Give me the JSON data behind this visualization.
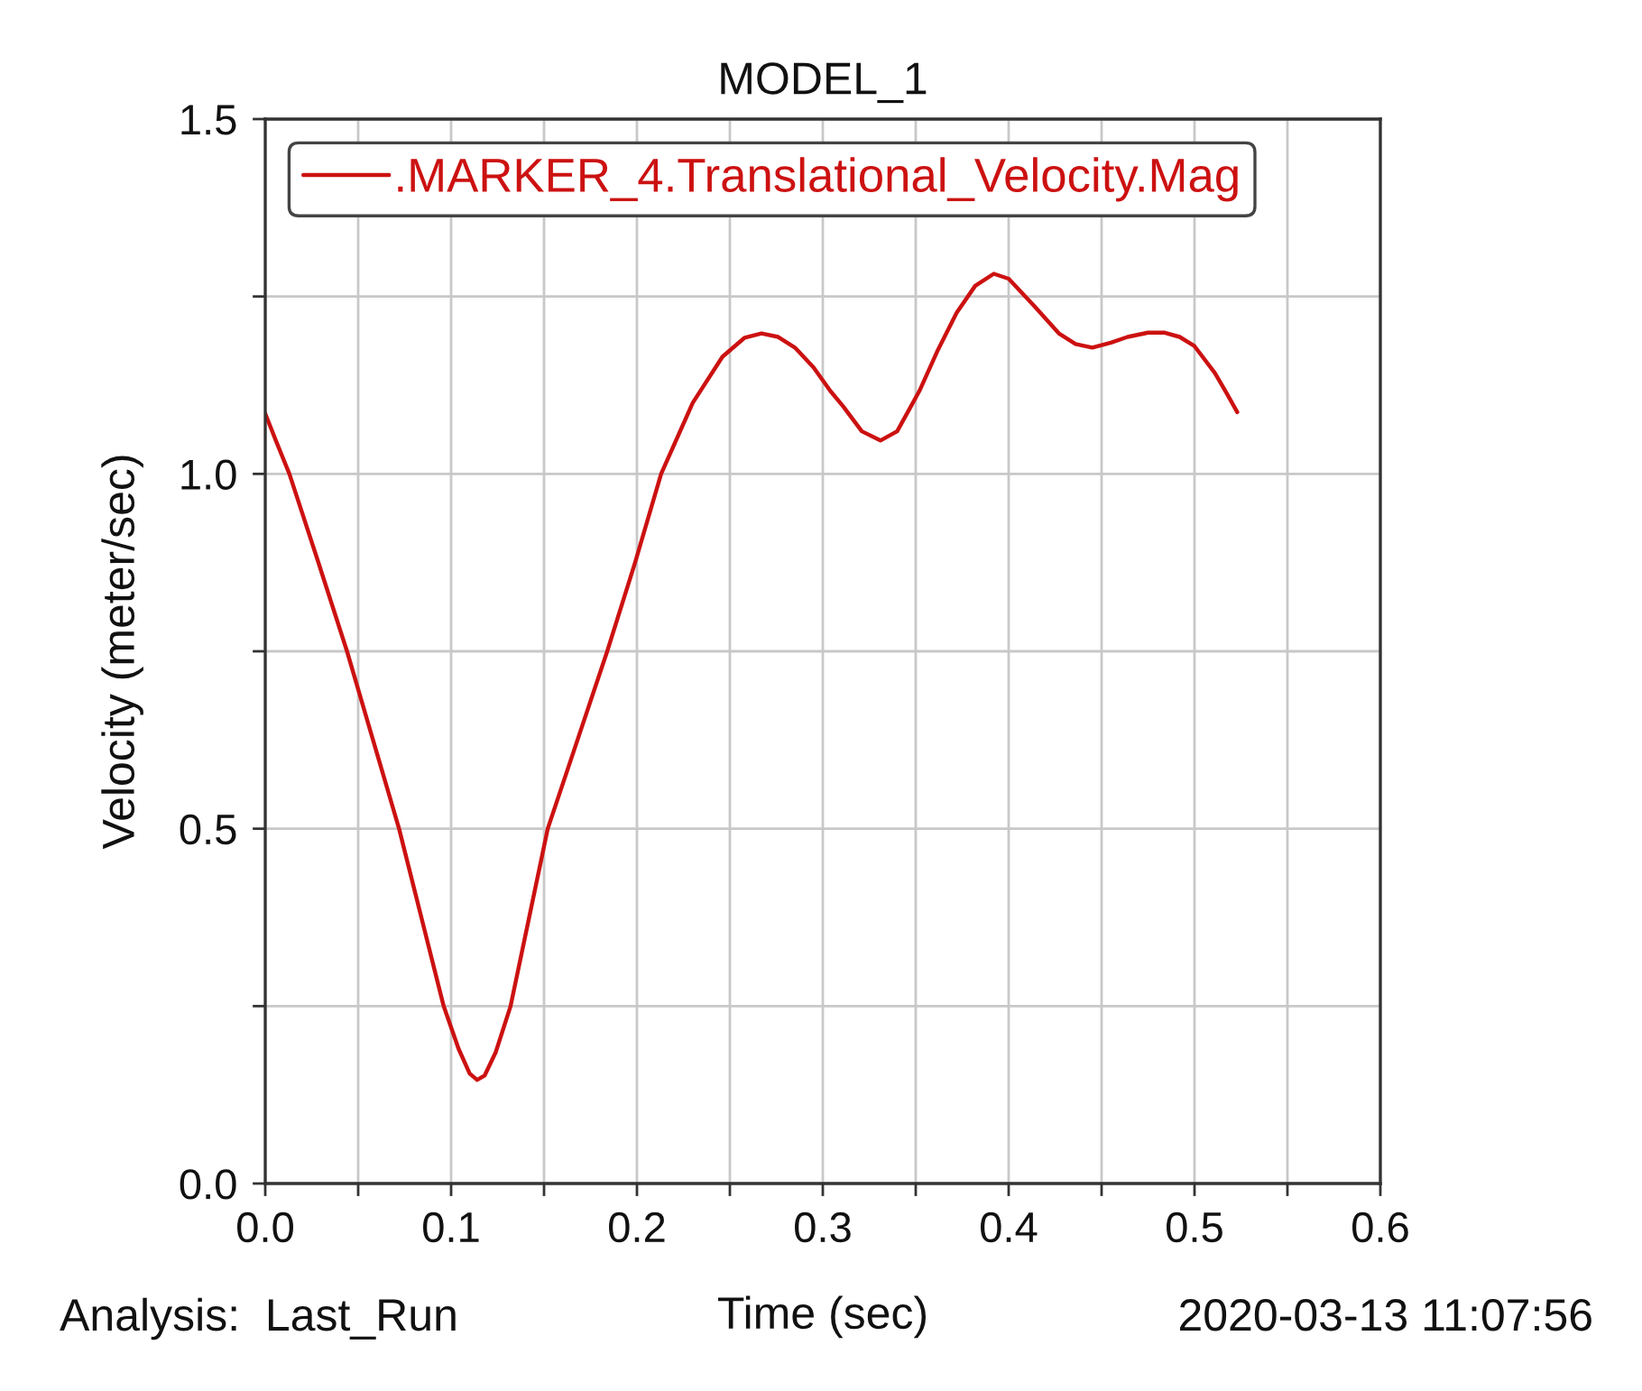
{
  "chart_data": {
    "type": "line",
    "title": "MODEL_1",
    "xlabel": "Time (sec)",
    "ylabel": "Velocity (meter/sec)",
    "annotations": [
      "Analysis:  Last_Run",
      "2020-03-13 11:07:56"
    ],
    "series": [
      {
        "name": ".MARKER_4.Translational_Velocity.Mag",
        "color": "#cc1111",
        "x": [
          0,
          0.006,
          0.013,
          0.028,
          0.044,
          0.058,
          0.072,
          0.084,
          0.096,
          0.104,
          0.11,
          0.114,
          0.118,
          0.124,
          0.132,
          0.142,
          0.152,
          0.168,
          0.184,
          0.199,
          0.213,
          0.23,
          0.246,
          0.258,
          0.267,
          0.276,
          0.285,
          0.295,
          0.304,
          0.311,
          0.321,
          0.331,
          0.34,
          0.352,
          0.362,
          0.372,
          0.382,
          0.392,
          0.4,
          0.414,
          0.427,
          0.436,
          0.445,
          0.455,
          0.464,
          0.475,
          0.484,
          0.492,
          0.5,
          0.511,
          0.517,
          0.523
        ],
        "values": [
          1.085,
          1.045,
          1.0,
          0.88,
          0.75,
          0.625,
          0.5,
          0.375,
          0.25,
          0.19,
          0.155,
          0.146,
          0.152,
          0.185,
          0.25,
          0.375,
          0.5,
          0.625,
          0.75,
          0.875,
          1.0,
          1.1,
          1.165,
          1.192,
          1.198,
          1.193,
          1.178,
          1.15,
          1.117,
          1.095,
          1.06,
          1.047,
          1.06,
          1.117,
          1.175,
          1.227,
          1.265,
          1.282,
          1.275,
          1.236,
          1.198,
          1.183,
          1.178,
          1.185,
          1.193,
          1.199,
          1.199,
          1.193,
          1.18,
          1.142,
          1.115,
          1.087
        ]
      }
    ],
    "xlim": [
      0,
      0.6
    ],
    "ylim": [
      0,
      1.5
    ],
    "xticks": [
      {
        "value": 0,
        "label": "0.0"
      },
      {
        "value": 0.05,
        "label": null
      },
      0.1,
      {
        "value": 0.15,
        "label": null
      },
      0.2,
      {
        "value": 0.25,
        "label": null
      },
      0.3,
      {
        "value": 0.35,
        "label": null
      },
      0.4,
      {
        "value": 0.45,
        "label": null
      },
      0.5,
      {
        "value": 0.55,
        "label": null
      },
      0.6
    ],
    "yticks": [
      {
        "value": 0,
        "label": "0.0"
      },
      {
        "value": 0.25,
        "label": null
      },
      0.5,
      {
        "value": 0.75,
        "label": null
      },
      {
        "value": 1,
        "label": "1.0"
      },
      {
        "value": 1.25,
        "label": null
      },
      1.5
    ],
    "grid": true,
    "legend": "top left",
    "line_style": "solid"
  }
}
